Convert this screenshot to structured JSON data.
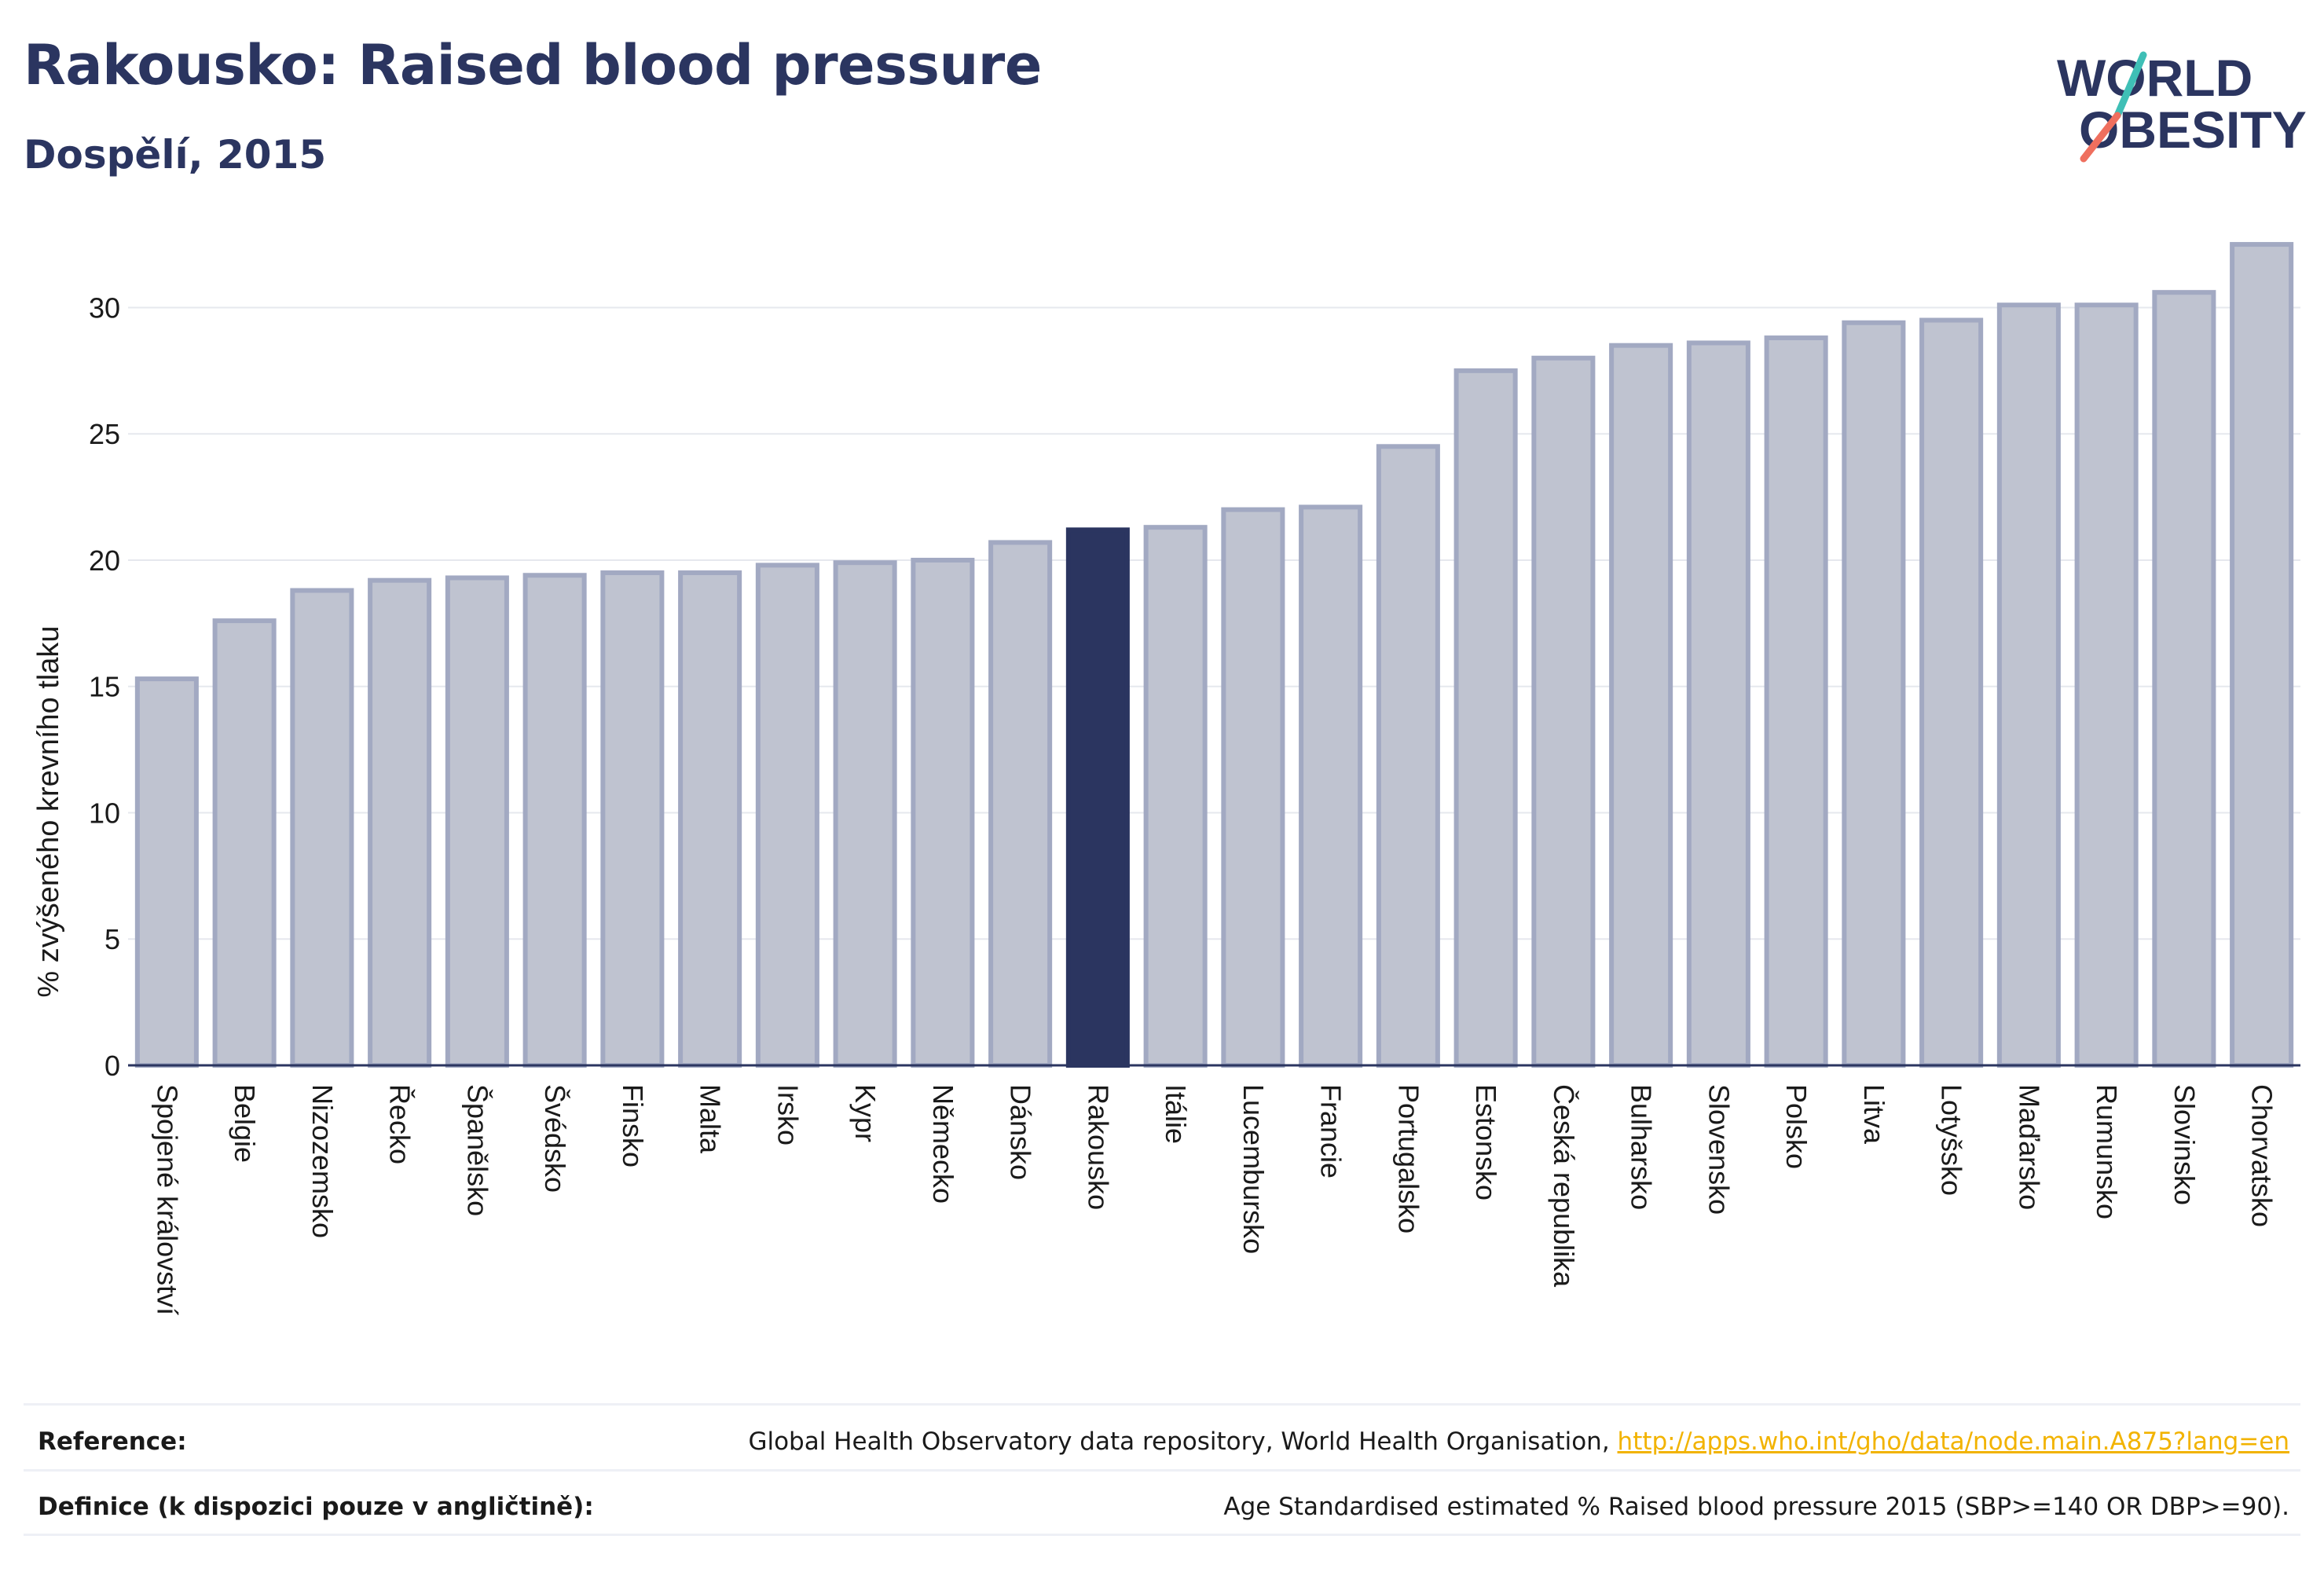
{
  "header": {
    "title": "Rakousko: Raised blood pressure",
    "subtitle": "Dospělí, 2015"
  },
  "logo": {
    "line1": "WORLD",
    "line2": "OBESITY"
  },
  "chart_data": {
    "type": "bar",
    "ylabel": "% zvýšeného krevního tlaku",
    "xlabel": "",
    "ylim": [
      0,
      33
    ],
    "yticks": [
      0,
      5,
      10,
      15,
      20,
      25,
      30
    ],
    "grid": true,
    "highlight": "Rakousko",
    "categories": [
      "Spojené království",
      "Belgie",
      "Nizozemsko",
      "Řecko",
      "Španělsko",
      "Švédsko",
      "Finsko",
      "Malta",
      "Irsko",
      "Kypr",
      "Německo",
      "Dánsko",
      "Rakousko",
      "Itálie",
      "Lucembursko",
      "Francie",
      "Portugalsko",
      "Estonsko",
      "Česká republika",
      "Bulharsko",
      "Slovensko",
      "Polsko",
      "Litva",
      "Lotyšsko",
      "Maďarsko",
      "Rumunsko",
      "Slovinsko",
      "Chorvatsko"
    ],
    "values": [
      15.3,
      17.6,
      18.8,
      19.2,
      19.3,
      19.4,
      19.5,
      19.5,
      19.8,
      19.9,
      20.0,
      20.7,
      21.2,
      21.3,
      22.0,
      22.1,
      24.5,
      27.5,
      28.0,
      28.5,
      28.6,
      28.8,
      29.4,
      29.5,
      30.1,
      30.1,
      30.6,
      32.5
    ],
    "colors": {
      "bar_fill": "#bfc3d0",
      "bar_stroke": "#a2a9c2",
      "highlight": "#2b3560",
      "grid": "#e6e8ee",
      "axis": "#2b3560"
    }
  },
  "footer": {
    "reference_label": "Reference:",
    "reference_text": "Global Health Observatory data repository, World Health Organisation, ",
    "reference_link": "http://apps.who.int/gho/data/node.main.A875?lang=en",
    "definition_label": "Definice (k dispozici pouze v angličtině):",
    "definition_text": "Age Standardised estimated % Raised blood pressure 2015 (SBP>=140 OR DBP>=90)."
  }
}
